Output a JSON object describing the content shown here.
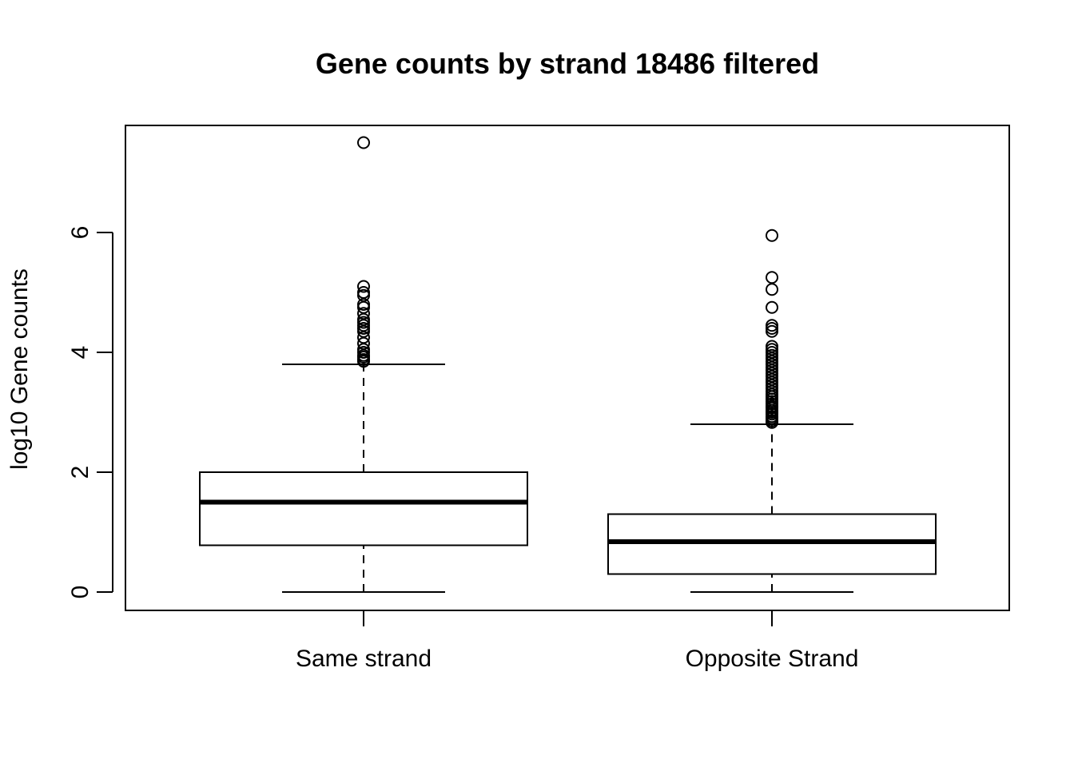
{
  "chart_data": {
    "type": "boxplot",
    "title": "Gene counts by strand 18486 filtered",
    "xlabel": "",
    "ylabel": "log10 Gene counts",
    "ylim": [
      -0.3,
      7.8
    ],
    "yticks": [
      0,
      2,
      4,
      6
    ],
    "grid": false,
    "legend": "none",
    "colors": {
      "line": "#000000",
      "fill": "#ffffff"
    },
    "categories": [
      "Same strand",
      "Opposite Strand"
    ],
    "boxes": [
      {
        "label": "Same strand",
        "whisker_low": 0.0,
        "q1": 0.78,
        "median": 1.5,
        "q3": 2.0,
        "whisker_high": 3.8,
        "outliers": [
          3.85,
          3.88,
          3.92,
          3.95,
          4.0,
          4.05,
          4.15,
          4.25,
          4.35,
          4.4,
          4.45,
          4.5,
          4.55,
          4.65,
          4.75,
          4.8,
          4.95,
          5.0,
          5.1,
          7.5
        ]
      },
      {
        "label": "Opposite Strand",
        "whisker_low": 0.0,
        "q1": 0.3,
        "median": 0.84,
        "q3": 1.3,
        "whisker_high": 2.8,
        "outliers": [
          2.83,
          2.86,
          2.9,
          2.93,
          2.97,
          3.0,
          3.03,
          3.07,
          3.1,
          3.14,
          3.18,
          3.22,
          3.26,
          3.3,
          3.35,
          3.4,
          3.45,
          3.5,
          3.55,
          3.6,
          3.65,
          3.7,
          3.75,
          3.8,
          3.85,
          3.9,
          3.95,
          4.0,
          4.05,
          4.1,
          4.35,
          4.4,
          4.45,
          4.75,
          5.05,
          5.25,
          5.95
        ]
      }
    ]
  }
}
